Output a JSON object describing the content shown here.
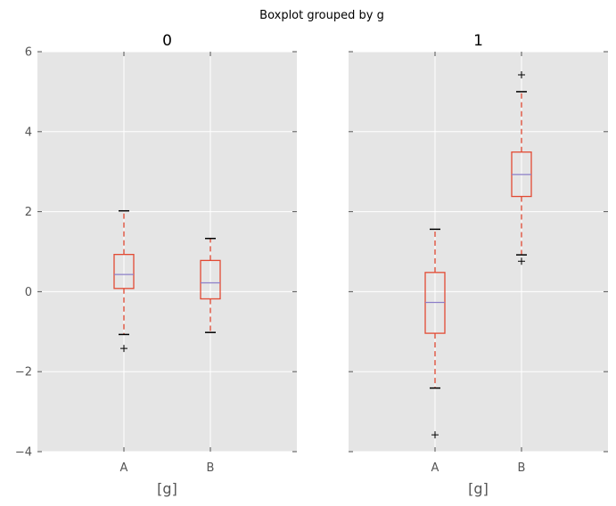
{
  "chart_data": {
    "type": "boxplot",
    "title": "Boxplot grouped by g",
    "style": {
      "background": "#e5e5e5",
      "grid_color": "#ffffff",
      "box_color": "#e24a33",
      "median_color": "#8c7ec8",
      "cap_color": "#000000",
      "tick_color": "#555555"
    },
    "ylim": [
      -4,
      6
    ],
    "yticks": [
      -4,
      -2,
      0,
      2,
      4,
      6
    ],
    "yticklabels": [
      "−4",
      "−2",
      "0",
      "2",
      "4",
      "6"
    ],
    "grid": true,
    "sharey": true,
    "panels": [
      {
        "title": "0",
        "xlabel": "[g]",
        "categories": [
          "A",
          "B"
        ],
        "boxes": [
          {
            "label": "A",
            "whislo": -1.07,
            "q1": 0.08,
            "med": 0.43,
            "q3": 0.93,
            "whishi": 2.02,
            "fliers": [
              -1.42
            ]
          },
          {
            "label": "B",
            "whislo": -1.02,
            "q1": -0.18,
            "med": 0.22,
            "q3": 0.78,
            "whishi": 1.33,
            "fliers": []
          }
        ]
      },
      {
        "title": "1",
        "xlabel": "[g]",
        "categories": [
          "A",
          "B"
        ],
        "boxes": [
          {
            "label": "A",
            "whislo": -2.41,
            "q1": -1.04,
            "med": -0.27,
            "q3": 0.48,
            "whishi": 1.56,
            "fliers": [
              -3.58
            ]
          },
          {
            "label": "B",
            "whislo": 0.92,
            "q1": 2.38,
            "med": 2.93,
            "q3": 3.49,
            "whishi": 5.0,
            "fliers": [
              0.76,
              5.42
            ]
          }
        ]
      }
    ]
  }
}
